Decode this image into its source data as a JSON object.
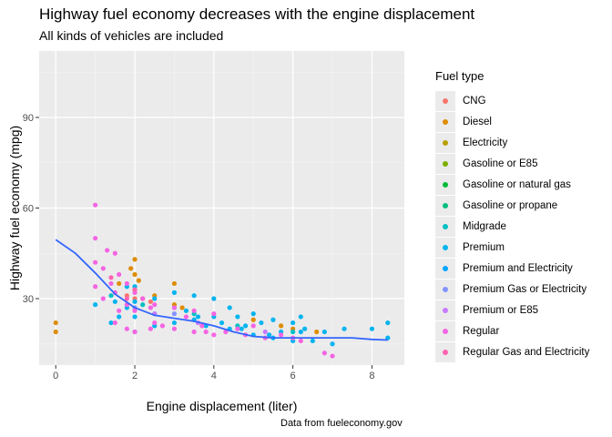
{
  "chart_data": {
    "type": "scatter",
    "title": "Highway fuel economy decreases with the engine displacement",
    "subtitle": "All kinds of vehicles are included",
    "caption": "Data from fueleconomy.gov",
    "xlabel": "Engine displacement (liter)",
    "ylabel": "Highway fuel economy (mpg)",
    "xlim": [
      -0.42,
      8.82
    ],
    "ylim": [
      8,
      112
    ],
    "xticks": [
      0,
      2,
      4,
      6,
      8
    ],
    "yticks": [
      30,
      60,
      90
    ],
    "grid": true,
    "legend": {
      "title": "Fuel type",
      "position": "right",
      "entries": [
        {
          "name": "CNG",
          "color": "#F8766D"
        },
        {
          "name": "Diesel",
          "color": "#DE8C00"
        },
        {
          "name": "Electricity",
          "color": "#B79F00"
        },
        {
          "name": "Gasoline or E85",
          "color": "#7CAE00"
        },
        {
          "name": "Gasoline or natural gas",
          "color": "#00BA38"
        },
        {
          "name": "Gasoline or propane",
          "color": "#00BF7D"
        },
        {
          "name": "Midgrade",
          "color": "#00BFC4"
        },
        {
          "name": "Premium",
          "color": "#00B4F0"
        },
        {
          "name": "Premium and Electricity",
          "color": "#00A5FF"
        },
        {
          "name": "Premium Gas or Electricity",
          "color": "#8494FF"
        },
        {
          "name": "Premium or E85",
          "color": "#C77CFF"
        },
        {
          "name": "Regular",
          "color": "#F564E3"
        },
        {
          "name": "Regular Gas and Electricity",
          "color": "#FF64B0"
        }
      ]
    },
    "smooth_line": {
      "color": "#3366FF",
      "x": [
        0,
        0.5,
        1,
        1.5,
        2,
        2.5,
        3,
        3.5,
        4,
        4.5,
        5,
        5.5,
        6,
        6.5,
        7,
        7.5,
        8,
        8.4
      ],
      "y": [
        49.5,
        45,
        38.5,
        31.5,
        27,
        24.5,
        23.5,
        22.5,
        21,
        19,
        17.5,
        17,
        17,
        17,
        17,
        17,
        16.5,
        16.3
      ]
    },
    "series": [
      {
        "name": "CNG",
        "x": [
          1.8,
          2.0,
          2.4
        ],
        "y": [
          31,
          30,
          29
        ]
      },
      {
        "name": "Diesel",
        "x": [
          0.0,
          0.0,
          1.6,
          1.9,
          2.0,
          2.0,
          2.0,
          2.1,
          2.2,
          2.5,
          3.0,
          3.0,
          3.2,
          5.0,
          5.7,
          6.0,
          6.6
        ],
        "y": [
          19,
          22,
          35,
          40,
          43,
          38,
          33,
          36,
          30,
          31,
          28,
          35,
          27,
          23,
          21,
          20,
          19
        ]
      },
      {
        "name": "Midgrade",
        "x": [
          1.4,
          2.2,
          3.5,
          4.6,
          6.0
        ],
        "y": [
          31,
          28,
          25,
          21,
          19
        ]
      },
      {
        "name": "Premium",
        "x": [
          1.0,
          1.4,
          1.5,
          1.6,
          1.8,
          1.8,
          2.0,
          2.0,
          2.0,
          2.0,
          2.5,
          2.5,
          2.5,
          3.0,
          3.0,
          3.0,
          3.3,
          3.5,
          3.5,
          3.6,
          3.8,
          4.0,
          4.0,
          4.2,
          4.4,
          4.4,
          4.6,
          4.7,
          4.8,
          5.0,
          5.0,
          5.2,
          5.4,
          5.5,
          5.5,
          5.7,
          6.0,
          6.0,
          6.2,
          6.2,
          6.3,
          6.5,
          6.8,
          7.0,
          7.3,
          8.0,
          8.4,
          8.4
        ],
        "y": [
          28,
          22,
          29,
          24,
          34,
          27,
          34,
          29,
          24,
          19,
          30,
          25,
          21,
          32,
          27,
          22,
          26,
          31,
          23,
          24,
          21,
          30,
          24,
          22,
          27,
          20,
          24,
          20,
          21,
          25,
          18,
          22,
          18,
          23,
          17,
          19,
          22,
          16,
          24,
          19,
          20,
          16,
          19,
          15,
          20,
          20,
          22,
          17
        ]
      },
      {
        "name": "Premium Gas or Electricity",
        "x": [
          2.0,
          3.0
        ],
        "y": [
          27,
          25
        ]
      },
      {
        "name": "Premium or E85",
        "x": [
          2.5,
          3.6,
          5.3
        ],
        "y": [
          25,
          22,
          19
        ]
      },
      {
        "name": "Regular",
        "x": [
          1.0,
          1.0,
          1.0,
          1.0,
          1.2,
          1.2,
          1.3,
          1.4,
          1.5,
          1.5,
          1.5,
          1.6,
          1.6,
          1.8,
          1.8,
          1.8,
          2.0,
          2.0,
          2.0,
          2.2,
          2.4,
          2.4,
          2.5,
          2.5,
          2.7,
          3.0,
          3.0,
          3.3,
          3.5,
          3.5,
          3.7,
          3.8,
          4.0,
          4.0,
          4.3,
          4.6,
          4.8,
          5.0,
          5.3,
          5.7,
          6.0,
          6.2,
          6.8,
          7.0
        ],
        "y": [
          61,
          50,
          42,
          34,
          40,
          30,
          46,
          35,
          45,
          32,
          22,
          38,
          26,
          35,
          28,
          20,
          32,
          26,
          19,
          30,
          27,
          20,
          28,
          22,
          21,
          27,
          20,
          24,
          26,
          19,
          21,
          19,
          25,
          18,
          19,
          20,
          18,
          21,
          17,
          18,
          17,
          16,
          12,
          11
        ]
      },
      {
        "name": "Regular Gas and Electricity",
        "x": [
          1.4,
          1.8,
          2.0
        ],
        "y": [
          37,
          30,
          33
        ]
      }
    ]
  }
}
